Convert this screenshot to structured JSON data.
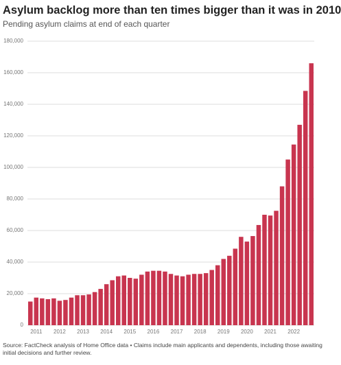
{
  "chart_data": {
    "type": "bar",
    "title": "Asylum backlog more than ten times bigger than it was in 2010",
    "subtitle": "Pending asylum claims at end of each quarter",
    "source": "Source: FactCheck analysis of Home Office data • Claims include main applicants and dependents, including those awaiting initial decisions and further review.",
    "categories": [
      null,
      "2011",
      null,
      null,
      null,
      "2012",
      null,
      null,
      null,
      "2013",
      null,
      null,
      null,
      "2014",
      null,
      null,
      null,
      "2015",
      null,
      null,
      null,
      "2016",
      null,
      null,
      null,
      "2017",
      null,
      null,
      null,
      "2018",
      null,
      null,
      null,
      "2019",
      null,
      null,
      null,
      "2020",
      null,
      null,
      null,
      "2021",
      null,
      null,
      null,
      "2022",
      null,
      null,
      null
    ],
    "values": [
      15000,
      17500,
      17000,
      16500,
      17000,
      15500,
      16000,
      17500,
      19000,
      19000,
      19500,
      21000,
      23000,
      26000,
      28500,
      31000,
      31500,
      30000,
      29500,
      32000,
      34000,
      34500,
      34500,
      34000,
      32500,
      31500,
      31000,
      32000,
      32500,
      32500,
      33000,
      35000,
      38000,
      42000,
      44000,
      48500,
      56000,
      53000,
      56500,
      63500,
      70000,
      69500,
      72500,
      88000,
      105000,
      114500,
      127000,
      148500,
      166000
    ],
    "color": "#c8354f",
    "ylim": [
      0,
      180000
    ],
    "yticks": [
      0,
      {
        "value": 20000,
        "label": "20,000"
      },
      {
        "value": 40000,
        "label": "40,000"
      },
      {
        "value": 60000,
        "label": "60,000"
      },
      {
        "value": 80000,
        "label": "80,000"
      },
      {
        "value": 100000,
        "label": "100,000"
      },
      {
        "value": 120000,
        "label": "120,000"
      },
      {
        "value": 140000,
        "label": "140,000"
      },
      {
        "value": 160000,
        "label": "160,000"
      },
      {
        "value": 180000,
        "label": "180,000"
      }
    ],
    "grid": true
  }
}
